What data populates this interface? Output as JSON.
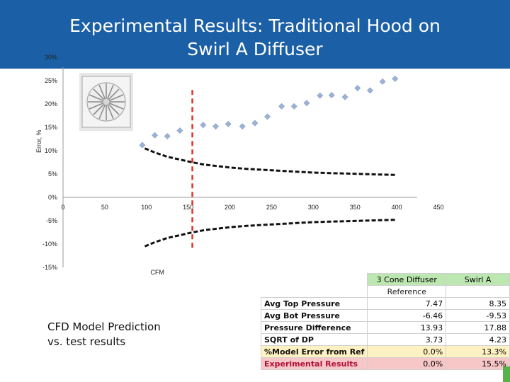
{
  "header": {
    "title_line1": "Experimental Results: Traditional Hood on",
    "title_line2": "Swirl A Diffuser",
    "background": "#1b5fa6"
  },
  "chart_data": {
    "type": "scatter",
    "title": "Experimental Results: Traditional Hood on Swirl A Diffuser",
    "xlabel": "CFM",
    "ylabel": "Error, %",
    "xlim": [
      0,
      450
    ],
    "ylim": [
      -15,
      30
    ],
    "x_ticks": [
      "0",
      "50",
      "100",
      "150",
      "200",
      "250",
      "300",
      "350",
      "400",
      "450"
    ],
    "y_ticks": [
      "-15%",
      "-10%",
      "-5%",
      "0%",
      "5%",
      "10%",
      "15%",
      "20%",
      "25%",
      "30%"
    ],
    "x_tick_values": [
      0,
      50,
      100,
      150,
      200,
      250,
      300,
      350,
      400,
      450
    ],
    "y_tick_values": [
      -15,
      -10,
      -5,
      0,
      5,
      10,
      15,
      20,
      25,
      30
    ],
    "series": [
      {
        "kind": "scatter",
        "color": "#9db3d6",
        "x": [
          95,
          110,
          125,
          140,
          168,
          183,
          198,
          215,
          230,
          245,
          262,
          277,
          292,
          308,
          322,
          338,
          353,
          368,
          383,
          398
        ],
        "y": [
          11.2,
          13.3,
          13.1,
          14.3,
          15.5,
          15.2,
          15.7,
          15.2,
          15.9,
          17.3,
          19.5,
          19.5,
          20.2,
          21.8,
          21.9,
          21.5,
          23.4,
          22.9,
          24.8,
          25.4
        ]
      },
      {
        "kind": "line",
        "color": "#111111",
        "dash": "dashed",
        "x": [
          98,
          110,
          125,
          140,
          155,
          170,
          185,
          200,
          220,
          240,
          260,
          280,
          300,
          320,
          340,
          360,
          380,
          400
        ],
        "y": [
          10.5,
          9.6,
          8.7,
          8.1,
          7.5,
          7.0,
          6.7,
          6.4,
          6.1,
          5.9,
          5.7,
          5.5,
          5.3,
          5.2,
          5.1,
          5.0,
          4.9,
          4.8
        ]
      },
      {
        "kind": "line",
        "color": "#111111",
        "dash": "dashed",
        "x": [
          98,
          110,
          125,
          140,
          155,
          170,
          185,
          200,
          220,
          240,
          260,
          280,
          300,
          320,
          340,
          360,
          380,
          400
        ],
        "y": [
          -10.5,
          -9.6,
          -8.7,
          -8.1,
          -7.5,
          -7.0,
          -6.7,
          -6.4,
          -6.1,
          -5.9,
          -5.7,
          -5.5,
          -5.3,
          -5.2,
          -5.1,
          -5.0,
          -4.9,
          -4.8
        ]
      },
      {
        "kind": "vline",
        "color": "#e0302b",
        "dash": "dashed",
        "x": 155,
        "y_range": [
          -11,
          23
        ]
      }
    ]
  },
  "caption": {
    "line1": "CFD Model Prediction",
    "line2": "vs. test results"
  },
  "table": {
    "headers": [
      "3 Cone Diffuser",
      "Swirl A"
    ],
    "reference_label": "Reference",
    "rows": [
      {
        "label": "Avg Top Pressure",
        "v1": "7.47",
        "v2": "8.35"
      },
      {
        "label": "Avg Bot Pressure",
        "v1": "-6.46",
        "v2": "-9.53"
      },
      {
        "label": "Pressure Difference",
        "v1": "13.93",
        "v2": "17.88"
      },
      {
        "label": "SQRT of DP",
        "v1": "3.73",
        "v2": "4.23"
      },
      {
        "label": "%Model Error from Ref",
        "v1": "0.0%",
        "v2": "13.3%"
      },
      {
        "label": "Experimental Results",
        "v1": "0.0%",
        "v2": "15.5%"
      }
    ]
  }
}
